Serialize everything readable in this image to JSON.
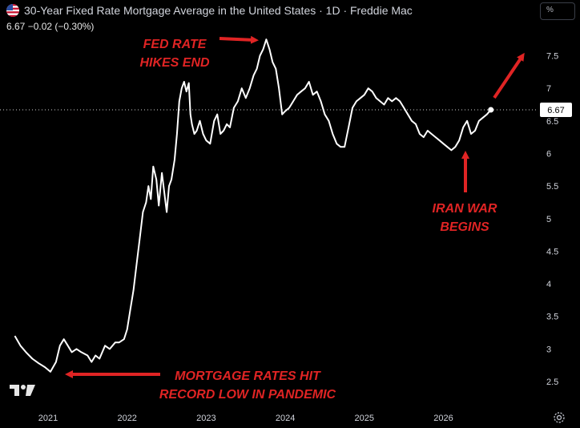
{
  "header": {
    "title": "30-Year Fixed Rate Mortgage Average in the United States · 1D · Freddie Mac",
    "quote": "6.67  −0.02 (−0.30%)",
    "flag_icon": "us-flag-icon"
  },
  "toolbar": {
    "scale_label": "%"
  },
  "last_price": {
    "label": "6.67",
    "value": 6.67
  },
  "colors": {
    "background": "#000000",
    "line": "#ffffff",
    "annotation": "#e02424",
    "axis_text": "#d1d4dc"
  },
  "annotations": [
    {
      "id": "fed",
      "lines": [
        "FED RATE",
        "HIKES END"
      ]
    },
    {
      "id": "iran",
      "lines": [
        "IRAN WAR",
        "BEGINS"
      ]
    },
    {
      "id": "pandemic",
      "lines": [
        "MORTGAGE RATES HIT",
        "RECORD LOW IN PANDEMIC"
      ]
    }
  ],
  "chart_data": {
    "type": "line",
    "title": "30-Year Fixed Rate Mortgage Average in the United States",
    "xlabel": "",
    "ylabel": "",
    "ylim": [
      2.2,
      8.0
    ],
    "xlim": [
      2020.6,
      2027.4
    ],
    "y_ticks": [
      "2.5",
      "3",
      "3.5",
      "4",
      "4.5",
      "5",
      "5.5",
      "6",
      "6.5",
      "7",
      "7.5"
    ],
    "x_ticks": [
      "2021",
      "2022",
      "2023",
      "2024",
      "2025",
      "2026"
    ],
    "grid": false,
    "series": [
      {
        "x": [
          2020.58,
          2020.65,
          2020.72,
          2020.8,
          2020.88,
          2020.96,
          2021.03,
          2021.1,
          2021.15,
          2021.2,
          2021.25,
          2021.3,
          2021.36,
          2021.42,
          2021.5,
          2021.55,
          2021.6,
          2021.65,
          2021.72,
          2021.78,
          2021.85,
          2021.9,
          2021.96,
          2022.0,
          2022.04,
          2022.08,
          2022.12,
          2022.16,
          2022.2,
          2022.24,
          2022.27,
          2022.3,
          2022.33,
          2022.37,
          2022.4,
          2022.44,
          2022.47,
          2022.5,
          2022.53,
          2022.56,
          2022.6,
          2022.63,
          2022.66,
          2022.69,
          2022.72,
          2022.75,
          2022.78,
          2022.8,
          2022.82,
          2022.85,
          2022.88,
          2022.92,
          2022.96,
          2023.0,
          2023.05,
          2023.1,
          2023.14,
          2023.18,
          2023.22,
          2023.26,
          2023.3,
          2023.35,
          2023.4,
          2023.45,
          2023.5,
          2023.55,
          2023.6,
          2023.64,
          2023.68,
          2023.72,
          2023.76,
          2023.8,
          2023.84,
          2023.88,
          2023.92,
          2023.96,
          2024.0,
          2024.05,
          2024.1,
          2024.15,
          2024.2,
          2024.25,
          2024.3,
          2024.35,
          2024.4,
          2024.45,
          2024.5,
          2024.55,
          2024.6,
          2024.65,
          2024.7,
          2024.75,
          2024.8,
          2024.85,
          2024.9,
          2024.95,
          2025.0,
          2025.05,
          2025.1,
          2025.15,
          2025.2,
          2025.25,
          2025.3,
          2025.35,
          2025.4,
          2025.45,
          2025.5,
          2025.55,
          2025.6,
          2025.65,
          2025.7,
          2025.75,
          2025.8,
          2025.85,
          2025.9,
          2025.95,
          2026.0,
          2026.05,
          2026.1,
          2026.15,
          2026.2,
          2026.25,
          2026.3,
          2026.35,
          2026.4,
          2026.45,
          2026.5,
          2026.55,
          2026.6
        ],
        "y": [
          3.2,
          3.05,
          2.95,
          2.85,
          2.78,
          2.72,
          2.65,
          2.8,
          3.05,
          3.15,
          3.05,
          2.95,
          3.0,
          2.95,
          2.9,
          2.8,
          2.9,
          2.85,
          3.05,
          3.0,
          3.1,
          3.1,
          3.15,
          3.3,
          3.6,
          3.9,
          4.3,
          4.7,
          5.1,
          5.25,
          5.5,
          5.3,
          5.8,
          5.6,
          5.2,
          5.7,
          5.4,
          5.1,
          5.5,
          5.6,
          5.9,
          6.3,
          6.8,
          7.0,
          7.1,
          6.95,
          7.08,
          6.6,
          6.45,
          6.3,
          6.35,
          6.5,
          6.3,
          6.2,
          6.15,
          6.5,
          6.6,
          6.3,
          6.35,
          6.45,
          6.4,
          6.7,
          6.8,
          7.0,
          6.85,
          7.0,
          7.2,
          7.3,
          7.5,
          7.6,
          7.75,
          7.6,
          7.4,
          7.3,
          7.0,
          6.6,
          6.65,
          6.7,
          6.8,
          6.9,
          6.95,
          7.0,
          7.1,
          6.9,
          6.95,
          6.8,
          6.6,
          6.5,
          6.3,
          6.15,
          6.1,
          6.1,
          6.4,
          6.7,
          6.8,
          6.85,
          6.9,
          7.0,
          6.95,
          6.85,
          6.8,
          6.75,
          6.85,
          6.8,
          6.85,
          6.8,
          6.7,
          6.6,
          6.5,
          6.45,
          6.3,
          6.25,
          6.35,
          6.3,
          6.25,
          6.2,
          6.15,
          6.1,
          6.05,
          6.1,
          6.2,
          6.4,
          6.5,
          6.3,
          6.35,
          6.5,
          6.55,
          6.6,
          6.67
        ]
      }
    ]
  }
}
